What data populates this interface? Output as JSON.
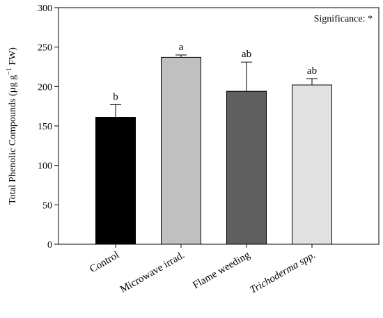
{
  "chart_data": {
    "type": "bar",
    "categories": [
      "Control",
      "Microwave irrad.",
      "Flame weeding",
      "Trichoderma spp."
    ],
    "category_italic": [
      false,
      false,
      false,
      true
    ],
    "values": [
      161,
      237,
      194,
      202
    ],
    "errors": [
      16,
      3,
      37,
      8
    ],
    "letters": [
      "b",
      "a",
      "ab",
      "ab"
    ],
    "colors": [
      "#000000",
      "#c0c0c0",
      "#5f5f5f",
      "#e1e1e1"
    ],
    "title": "",
    "xlabel": "",
    "ylabel_main": "Total Phenolic Compounds (µg g",
    "ylabel_sup": "−1",
    "ylabel_tail": " FW)",
    "ylim": [
      0,
      300
    ],
    "yticks": [
      0,
      50,
      100,
      150,
      200,
      250,
      300
    ],
    "annotation": "Significance: *",
    "grid": false
  }
}
